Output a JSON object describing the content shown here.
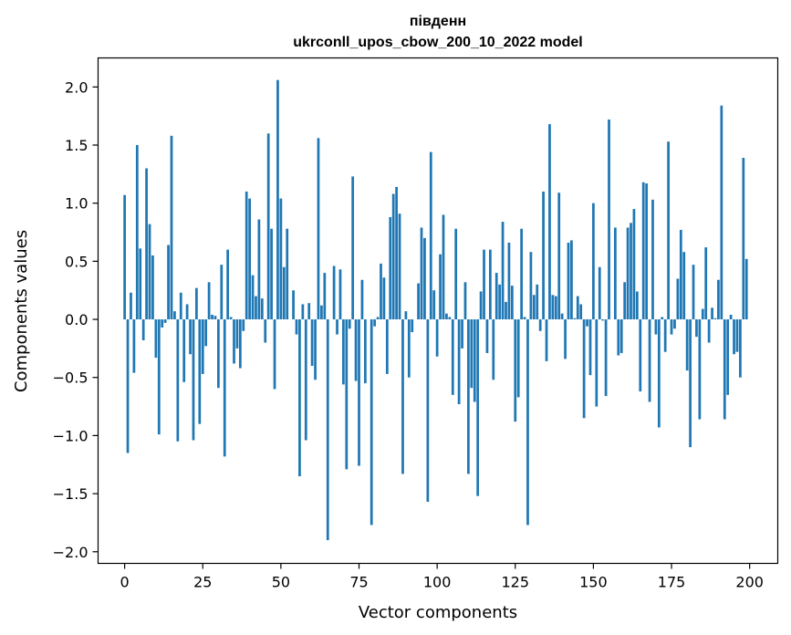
{
  "chart_data": {
    "type": "bar",
    "title": "південн",
    "subtitle": "ukrconll_upos_cbow_200_10_2022 model",
    "xlabel": "Vector components",
    "ylabel": "Components values",
    "xlim": [
      -8.5,
      209
    ],
    "ylim": [
      -2.1,
      2.25
    ],
    "xticks": [
      0,
      25,
      50,
      75,
      100,
      125,
      150,
      175,
      200
    ],
    "yticks": [
      -2.0,
      -1.5,
      -1.0,
      -0.5,
      0.0,
      0.5,
      1.0,
      1.5,
      2.0
    ],
    "ytick_labels": [
      "−2.0",
      "−1.5",
      "−1.0",
      "−0.5",
      "0.0",
      "0.5",
      "1.0",
      "1.5",
      "2.0"
    ],
    "bar_color": "#1f77b4",
    "grid": false,
    "values": [
      1.07,
      -1.15,
      0.23,
      -0.46,
      1.5,
      0.61,
      -0.18,
      1.3,
      0.82,
      0.55,
      -0.33,
      -0.99,
      -0.07,
      -0.03,
      0.64,
      1.58,
      0.07,
      -1.05,
      0.23,
      -0.54,
      0.13,
      -0.3,
      -1.04,
      0.27,
      -0.9,
      -0.47,
      -0.23,
      0.32,
      0.04,
      0.03,
      -0.59,
      0.47,
      -1.18,
      0.6,
      0.02,
      -0.38,
      -0.25,
      -0.42,
      -0.1,
      1.1,
      1.04,
      0.38,
      0.2,
      0.86,
      0.18,
      -0.2,
      1.6,
      0.78,
      -0.6,
      2.06,
      1.04,
      0.45,
      0.78,
      0.0,
      0.25,
      -0.13,
      -1.35,
      0.13,
      -1.04,
      0.14,
      -0.4,
      -0.52,
      1.56,
      0.12,
      0.4,
      -1.9,
      0.0,
      0.46,
      -0.13,
      0.43,
      -0.56,
      -1.29,
      -0.08,
      1.23,
      -0.53,
      -1.26,
      0.34,
      -0.55,
      0.0,
      -1.77,
      -0.06,
      0.02,
      0.48,
      0.36,
      -0.47,
      0.88,
      1.08,
      1.14,
      0.91,
      -1.33,
      0.07,
      -0.5,
      -0.11,
      0.0,
      0.31,
      0.79,
      0.7,
      -1.57,
      1.44,
      0.25,
      -0.32,
      0.56,
      0.9,
      0.05,
      0.02,
      -0.65,
      0.78,
      -0.73,
      -0.25,
      0.32,
      -1.33,
      -0.59,
      -0.71,
      -1.52,
      0.24,
      0.6,
      -0.29,
      0.6,
      -0.52,
      0.4,
      0.3,
      0.84,
      0.15,
      0.66,
      0.29,
      -0.88,
      -0.67,
      0.78,
      0.02,
      -1.77,
      0.58,
      0.21,
      0.3,
      -0.1,
      1.1,
      -0.36,
      1.68,
      0.21,
      0.2,
      1.09,
      0.05,
      -0.34,
      0.66,
      0.68,
      0.01,
      0.2,
      0.13,
      -0.85,
      -0.06,
      -0.48,
      1.0,
      -0.75,
      0.45,
      -0.01,
      -0.66,
      1.72,
      0.0,
      0.79,
      -0.31,
      -0.29,
      0.32,
      0.79,
      0.83,
      0.95,
      0.24,
      -0.62,
      1.18,
      1.17,
      -0.71,
      1.03,
      -0.13,
      -0.93,
      0.02,
      -0.28,
      1.53,
      -0.13,
      -0.08,
      0.35,
      0.77,
      0.58,
      -0.44,
      -1.1,
      0.47,
      -0.15,
      -0.86,
      0.09,
      0.62,
      -0.2,
      0.1,
      0.01,
      0.34,
      1.84,
      -0.86,
      -0.65,
      0.04,
      -0.3,
      -0.28,
      -0.5,
      1.39,
      0.52
    ]
  }
}
